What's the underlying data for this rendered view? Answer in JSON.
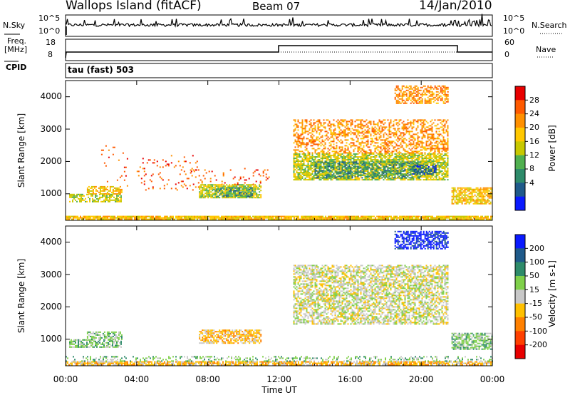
{
  "header": {
    "station": "Wallops Island (fitACF)",
    "beam": "Beam 07",
    "date": "14/Jan/2010"
  },
  "strip": {
    "nsky_label": "N.Sky",
    "nsearch_label": "N.Search",
    "nsky_ticks": [
      "10^5",
      "10^0"
    ],
    "nsearch_ticks": [
      "10^5",
      "10^0"
    ],
    "freq_label": "Freq.",
    "freq_unit": "[MHz]",
    "freq_ticks": [
      "18",
      "8"
    ],
    "nave_label": "Nave",
    "nave_ticks": [
      "60",
      "0"
    ],
    "cpid_label": "CPID",
    "cpid_value": "tau (fast) 503"
  },
  "chart_data": [
    {
      "type": "heatmap",
      "name": "power",
      "ylabel": "Slant Range [km]",
      "xlabel": "",
      "x_ticks": [
        "00:00",
        "04:00",
        "08:00",
        "12:00",
        "16:00",
        "20:00",
        "00:00"
      ],
      "y_ticks": [
        "1000",
        "2000",
        "3000",
        "4000"
      ],
      "xlim": [
        0,
        24
      ],
      "ylim": [
        180,
        4500
      ],
      "colorbar": {
        "label": "Power [dB]",
        "ticks": [
          "28",
          "24",
          "20",
          "16",
          "12",
          "8",
          "4"
        ],
        "colors": [
          "#e80000",
          "#ff5a00",
          "#ff9000",
          "#ffc800",
          "#c8c800",
          "#50b050",
          "#2e8b6a",
          "#1f5a8a",
          "#0a1aff"
        ]
      },
      "regions": [
        {
          "t": [
            0.0,
            24.0
          ],
          "r": [
            190,
            320
          ],
          "level": 3,
          "density": 0.9
        },
        {
          "t": [
            0.2,
            3.1
          ],
          "r": [
            740,
            1000
          ],
          "level": 4,
          "density": 0.6
        },
        {
          "t": [
            1.2,
            3.2
          ],
          "r": [
            990,
            1240
          ],
          "level": 3,
          "density": 0.6
        },
        {
          "t": [
            2.0,
            3.5
          ],
          "r": [
            1240,
            2500
          ],
          "level": 1,
          "density": 0.05
        },
        {
          "t": [
            4.0,
            7.5
          ],
          "r": [
            1100,
            2200
          ],
          "level": 1,
          "density": 0.07
        },
        {
          "t": [
            7.5,
            11.0
          ],
          "r": [
            900,
            1300
          ],
          "level": 4,
          "density": 0.8
        },
        {
          "t": [
            8.3,
            10.5
          ],
          "r": [
            920,
            1200
          ],
          "level": 6,
          "density": 0.5
        },
        {
          "t": [
            7.0,
            11.5
          ],
          "r": [
            1300,
            1800
          ],
          "level": 1,
          "density": 0.08
        },
        {
          "t": [
            12.8,
            21.5
          ],
          "r": [
            1450,
            2250
          ],
          "level": 4,
          "density": 0.75
        },
        {
          "t": [
            14.0,
            20.0
          ],
          "r": [
            1500,
            2000
          ],
          "level": 6,
          "density": 0.5
        },
        {
          "t": [
            19.5,
            20.8
          ],
          "r": [
            1600,
            1900
          ],
          "level": 7,
          "density": 0.6
        },
        {
          "t": [
            12.8,
            21.5
          ],
          "r": [
            2250,
            3300
          ],
          "level": 2,
          "density": 0.45
        },
        {
          "t": [
            18.5,
            21.5
          ],
          "r": [
            3800,
            4350
          ],
          "level": 2,
          "density": 0.55
        },
        {
          "t": [
            21.7,
            24.0
          ],
          "r": [
            700,
            1200
          ],
          "level": 3,
          "density": 0.7
        }
      ]
    },
    {
      "type": "heatmap",
      "name": "velocity",
      "ylabel": "Slant Range [km]",
      "xlabel": "Time UT",
      "x_ticks": [
        "00:00",
        "04:00",
        "08:00",
        "12:00",
        "16:00",
        "20:00",
        "00:00"
      ],
      "y_ticks": [
        "1000",
        "2000",
        "3000",
        "4000"
      ],
      "xlim": [
        0,
        24
      ],
      "ylim": [
        180,
        4500
      ],
      "colorbar": {
        "label": "Velocity [m s-1]",
        "ticks": [
          "200",
          "100",
          "50",
          "15",
          "-15",
          "-50",
          "-100",
          "-200"
        ],
        "colors": [
          "#0a1aff",
          "#1f5a8a",
          "#2e8b6a",
          "#7fd04a",
          "#c8c8c8",
          "#ffc000",
          "#ff8000",
          "#ff4000",
          "#e80000"
        ]
      },
      "regions": [
        {
          "t": [
            0.0,
            24.0
          ],
          "r": [
            190,
            320
          ],
          "level": 5,
          "density": 0.8
        },
        {
          "t": [
            0.0,
            24.0
          ],
          "r": [
            320,
            480
          ],
          "level": 3,
          "density": 0.3
        },
        {
          "t": [
            0.2,
            3.1
          ],
          "r": [
            740,
            1000
          ],
          "level": 3,
          "density": 0.6
        },
        {
          "t": [
            1.2,
            3.2
          ],
          "r": [
            990,
            1240
          ],
          "level": 3,
          "density": 0.6
        },
        {
          "t": [
            7.5,
            11.0
          ],
          "r": [
            900,
            1300
          ],
          "level": 5,
          "density": 0.7
        },
        {
          "t": [
            12.8,
            21.5
          ],
          "r": [
            1450,
            3300
          ],
          "level": 4,
          "density": 0.6
        },
        {
          "t": [
            18.5,
            21.5
          ],
          "r": [
            3800,
            4350
          ],
          "level": 0,
          "density": 0.65
        },
        {
          "t": [
            21.7,
            24.0
          ],
          "r": [
            700,
            1200
          ],
          "level": 3,
          "density": 0.7
        }
      ]
    }
  ]
}
